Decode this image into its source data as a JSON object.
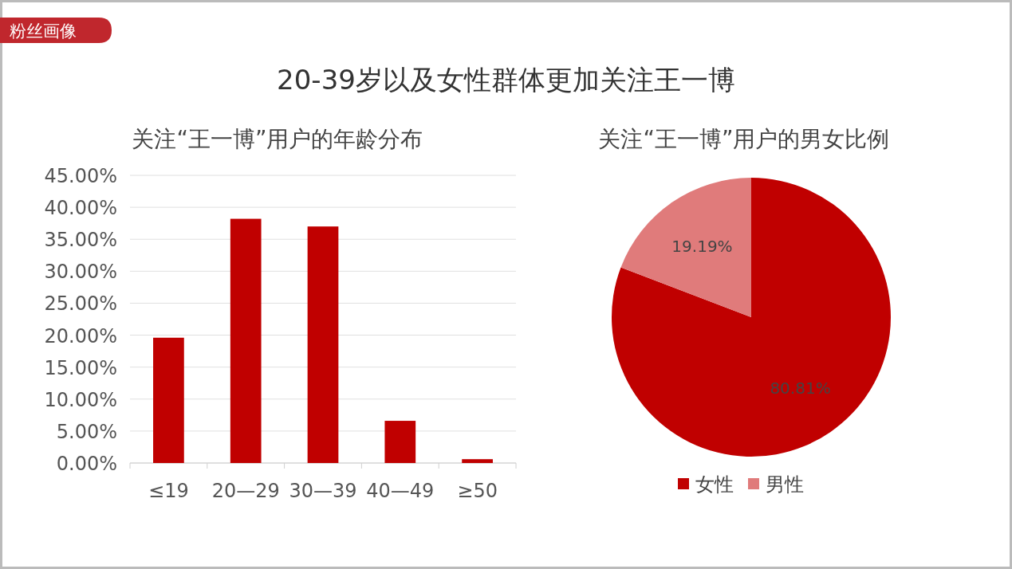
{
  "chart_data": [
    {
      "type": "other",
      "title": "20-39岁以及女性群体更加关注王一博",
      "annotations": [
        "粉丝画像"
      ]
    },
    {
      "type": "bar",
      "title": "关注“王一博”用户的年龄分布",
      "categories": [
        "≤19",
        "20—29",
        "30—39",
        "40—49",
        "≥50"
      ],
      "values": [
        19.6,
        38.2,
        37.0,
        6.6,
        0.6
      ],
      "color": "#c00000",
      "ylim": [
        0,
        45
      ],
      "yticks": [
        {
          "value": 0,
          "label": "0.00%"
        },
        {
          "value": 5,
          "label": "5.00%"
        },
        {
          "value": 10,
          "label": "10.00%"
        },
        {
          "value": 15,
          "label": "15.00%"
        },
        {
          "value": 20,
          "label": "20.00%"
        },
        {
          "value": 25,
          "label": "25.00%"
        },
        {
          "value": 30,
          "label": "30.00%"
        },
        {
          "value": 35,
          "label": "35.00%"
        },
        {
          "value": 40,
          "label": "40.00%"
        },
        {
          "value": 45,
          "label": "45.00%"
        }
      ],
      "grid": "y"
    },
    {
      "type": "pie",
      "title": "关注“王一博”用户的男女比例",
      "categories": [
        "女性",
        "男性"
      ],
      "values": [
        80.81,
        19.19
      ],
      "colors": [
        "#c00000",
        "#e07b7b"
      ],
      "value_labels": [
        "80.81%",
        "19.19%"
      ],
      "legend": "bottom"
    }
  ]
}
